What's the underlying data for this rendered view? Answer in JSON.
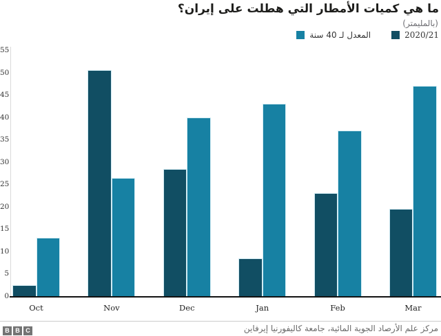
{
  "header": {
    "title": "ما هي كميات الأمطار التي هطلت على إيران؟",
    "subtitle": "(بالمليمتر)"
  },
  "colors": {
    "series_2020_21": "#114e63",
    "series_40yr_avg": "#1781a3",
    "bar_outline": "#d2ecf4",
    "axis_line": "#111111",
    "footer_logo_gray": "#747474"
  },
  "legend": {
    "items": [
      {
        "label": "المعدل لـ 40 سنة",
        "color": "#1781a3",
        "latin": false
      },
      {
        "label": "2020/21",
        "color": "#114e63",
        "latin": true
      }
    ]
  },
  "chart_data": {
    "type": "bar",
    "categories": [
      "Oct",
      "Nov",
      "Dec",
      "Jan",
      "Feb",
      "Mar"
    ],
    "series": [
      {
        "name": "2020/21",
        "color": "#114e63",
        "values": [
          2.5,
          50.5,
          28.5,
          8.5,
          23,
          19.5
        ]
      },
      {
        "name": "المعدل لـ 40 سنة",
        "color": "#1781a3",
        "values": [
          13,
          26.5,
          40,
          43,
          37,
          47
        ]
      }
    ],
    "title": "ما هي كميات الأمطار التي هطلت على إيران؟",
    "subtitle_unit": "(بالمليمتر)",
    "xlabel": "",
    "ylabel": "",
    "ylim": [
      0,
      55
    ],
    "yticks": [
      0,
      5,
      10,
      15,
      20,
      25,
      30,
      35,
      40,
      45,
      50,
      55
    ],
    "grid": false,
    "legend_position": "top-right"
  },
  "footer": {
    "source": "مركز علم الأرصاد الجوية المائية، جامعة كاليفورنيا إيرفاين",
    "logo_letters": [
      "B",
      "B",
      "C"
    ]
  }
}
